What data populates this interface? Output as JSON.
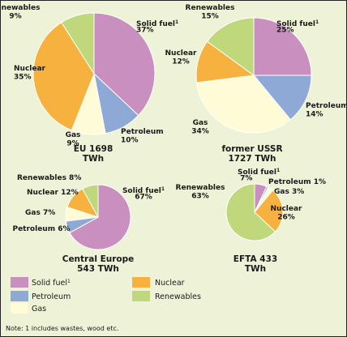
{
  "chart_data": [
    {
      "type": "pie",
      "title_lines": [
        "EU 1698",
        "TWh"
      ],
      "slices": [
        {
          "key": "solid_fuel",
          "label_lines": [
            "Solid fuel",
            "37%"
          ],
          "superscript": "1",
          "value": 37
        },
        {
          "key": "petroleum",
          "label_lines": [
            "Petroleum",
            "10%"
          ],
          "value": 10
        },
        {
          "key": "gas",
          "label_lines": [
            "Gas",
            "9%"
          ],
          "value": 9
        },
        {
          "key": "nuclear",
          "label_lines": [
            "Nuclear",
            "35%"
          ],
          "value": 35
        },
        {
          "key": "renewables",
          "label_lines": [
            "Renewables",
            "9%"
          ],
          "value": 9
        }
      ]
    },
    {
      "type": "pie",
      "title_lines": [
        "former USSR",
        "1727 TWh"
      ],
      "slices": [
        {
          "key": "solid_fuel",
          "label_lines": [
            "Solid fuel",
            "25%"
          ],
          "superscript": "1",
          "value": 25
        },
        {
          "key": "petroleum",
          "label_lines": [
            "Petroleum",
            "14%"
          ],
          "value": 14
        },
        {
          "key": "gas",
          "label_lines": [
            "Gas",
            "34%"
          ],
          "value": 34
        },
        {
          "key": "nuclear",
          "label_lines": [
            "Nuclear",
            "12%"
          ],
          "value": 12
        },
        {
          "key": "renewables",
          "label_lines": [
            "Renewables",
            "15%"
          ],
          "value": 15
        }
      ]
    },
    {
      "type": "pie",
      "title_lines": [
        "Central Europe",
        "543 TWh"
      ],
      "slices": [
        {
          "key": "solid_fuel",
          "label_lines": [
            "Solid fuel",
            "67%"
          ],
          "superscript": "1",
          "value": 67
        },
        {
          "key": "petroleum",
          "label_lines": [
            "Petroleum 6%"
          ],
          "value": 6
        },
        {
          "key": "gas",
          "label_lines": [
            "Gas 7%"
          ],
          "value": 7
        },
        {
          "key": "nuclear",
          "label_lines": [
            "Nuclear 12%"
          ],
          "value": 12
        },
        {
          "key": "renewables",
          "label_lines": [
            "Renewables 8%"
          ],
          "value": 8
        }
      ]
    },
    {
      "type": "pie",
      "title_lines": [
        "EFTA 433",
        "TWh"
      ],
      "slices": [
        {
          "key": "solid_fuel",
          "label_lines": [
            "Solid fuel",
            " 7%"
          ],
          "superscript": "1",
          "value": 7
        },
        {
          "key": "petroleum",
          "label_lines": [
            "Petroleum 1%"
          ],
          "value": 1
        },
        {
          "key": "gas",
          "label_lines": [
            "Gas 3%"
          ],
          "value": 3
        },
        {
          "key": "nuclear",
          "label_lines": [
            "Nuclear",
            "26%"
          ],
          "value": 26
        },
        {
          "key": "renewables",
          "label_lines": [
            "Renewables",
            "63%"
          ],
          "value": 63
        }
      ]
    }
  ],
  "colors": {
    "solid_fuel": "#c98fbf",
    "petroleum": "#8fa9d6",
    "gas": "#fffbd6",
    "nuclear": "#f7b13f",
    "renewables": "#bfd87c",
    "stroke": "#ffffff",
    "background": "#eef3d7"
  },
  "legend": [
    {
      "key": "solid_fuel",
      "label": "Solid fuel",
      "superscript": "1"
    },
    {
      "key": "nuclear",
      "label": "Nuclear"
    },
    {
      "key": "petroleum",
      "label": "Petroleum"
    },
    {
      "key": "renewables",
      "label": "Renewables"
    },
    {
      "key": "gas",
      "label": "Gas"
    }
  ],
  "note": "Note: 1 includes wastes, wood etc."
}
